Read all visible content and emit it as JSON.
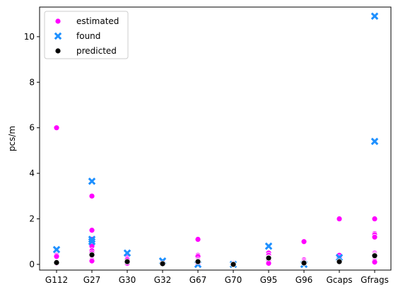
{
  "chart_data": {
    "type": "scatter",
    "title": "",
    "xlabel": "",
    "ylabel": "pcs/m",
    "categories": [
      "G112",
      "G27",
      "G30",
      "G32",
      "G67",
      "G70",
      "G95",
      "G96",
      "Gcaps",
      "Gfrags"
    ],
    "y_ticks": [
      "0",
      "2",
      "4",
      "6",
      "8",
      "10"
    ],
    "ylim": [
      -0.25,
      11.3
    ],
    "grid": false,
    "legend_position": "top-left",
    "series": [
      {
        "name": "estimated",
        "marker": "circle",
        "color": "#ff00ff",
        "points": [
          [
            "G112",
            6.0
          ],
          [
            "G112",
            0.4
          ],
          [
            "G112",
            0.35
          ],
          [
            "G112",
            0.1
          ],
          [
            "G112",
            0.05
          ],
          [
            "G27",
            3.0
          ],
          [
            "G27",
            1.5
          ],
          [
            "G27",
            1.1
          ],
          [
            "G27",
            0.8
          ],
          [
            "G27",
            0.6
          ],
          [
            "G27",
            0.5
          ],
          [
            "G27",
            0.4
          ],
          [
            "G27",
            0.2
          ],
          [
            "G27",
            0.15
          ],
          [
            "G30",
            0.4
          ],
          [
            "G30",
            0.3
          ],
          [
            "G30",
            0.25
          ],
          [
            "G30",
            0.2
          ],
          [
            "G30",
            0.1
          ],
          [
            "G30",
            0.05
          ],
          [
            "G32",
            0.1
          ],
          [
            "G32",
            0.05
          ],
          [
            "G32",
            0.02
          ],
          [
            "G67",
            1.1
          ],
          [
            "G67",
            0.4
          ],
          [
            "G67",
            0.35
          ],
          [
            "G67",
            0.2
          ],
          [
            "G67",
            0.15
          ],
          [
            "G67",
            0.05
          ],
          [
            "G70",
            0.05
          ],
          [
            "G70",
            0.02
          ],
          [
            "G95",
            0.5
          ],
          [
            "G95",
            0.4
          ],
          [
            "G95",
            0.3
          ],
          [
            "G95",
            0.2
          ],
          [
            "G95",
            0.05
          ],
          [
            "G96",
            1.0
          ],
          [
            "G96",
            0.2
          ],
          [
            "G96",
            0.15
          ],
          [
            "G96",
            0.1
          ],
          [
            "G96",
            0.05
          ],
          [
            "Gcaps",
            2.0
          ],
          [
            "Gcaps",
            0.4
          ],
          [
            "Gcaps",
            0.3
          ],
          [
            "Gcaps",
            0.2
          ],
          [
            "Gcaps",
            0.1
          ],
          [
            "Gfrags",
            2.0
          ],
          [
            "Gfrags",
            1.35
          ],
          [
            "Gfrags",
            1.3
          ],
          [
            "Gfrags",
            1.2
          ],
          [
            "Gfrags",
            0.5
          ],
          [
            "Gfrags",
            0.45
          ],
          [
            "Gfrags",
            0.4
          ],
          [
            "Gfrags",
            0.3
          ],
          [
            "Gfrags",
            0.2
          ],
          [
            "Gfrags",
            0.15
          ],
          [
            "Gfrags",
            0.1
          ]
        ]
      },
      {
        "name": "found",
        "marker": "x",
        "color": "#1e90ff",
        "points": [
          [
            "G112",
            0.65
          ],
          [
            "G27",
            3.65
          ],
          [
            "G27",
            1.1
          ],
          [
            "G27",
            1.0
          ],
          [
            "G30",
            0.5
          ],
          [
            "G32",
            0.15
          ],
          [
            "G67",
            0.0
          ],
          [
            "G70",
            0.0
          ],
          [
            "G95",
            0.8
          ],
          [
            "G96",
            0.0
          ],
          [
            "Gcaps",
            0.3
          ],
          [
            "Gfrags",
            10.9
          ],
          [
            "Gfrags",
            5.4
          ]
        ]
      },
      {
        "name": "predicted",
        "marker": "circle",
        "color": "#000000",
        "points": [
          [
            "G112",
            0.08
          ],
          [
            "G27",
            0.42
          ],
          [
            "G30",
            0.12
          ],
          [
            "G32",
            0.03
          ],
          [
            "G67",
            0.12
          ],
          [
            "G70",
            0.0
          ],
          [
            "G95",
            0.28
          ],
          [
            "G96",
            0.06
          ],
          [
            "Gcaps",
            0.12
          ],
          [
            "Gfrags",
            0.38
          ]
        ]
      }
    ]
  }
}
